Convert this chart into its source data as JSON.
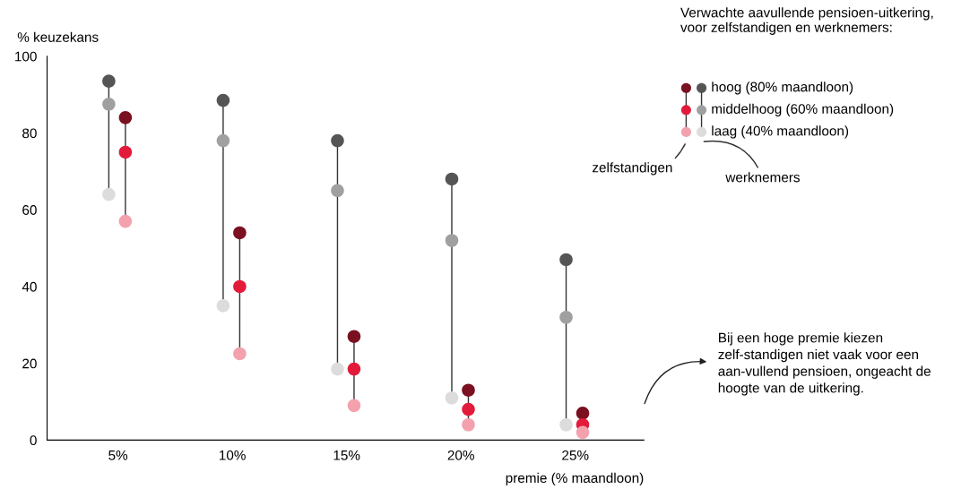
{
  "chart_data": {
    "type": "scatter",
    "ylabel": "% keuzekans",
    "xlabel": "premie (% maandloon)",
    "legend_title": "Verwachte aavullende pensioen-uitkering, voor zelfstandigen en werknemers:",
    "categories": [
      "5%",
      "10%",
      "15%",
      "20%",
      "25%"
    ],
    "ylim": [
      0,
      100
    ],
    "yticks": [
      0,
      20,
      40,
      60,
      80,
      100
    ],
    "grid": false,
    "marker": "circle",
    "legend": "top right",
    "series": [
      {
        "name": "hoog (80% maandloon)",
        "color": "#7a1020",
        "values": [
          84,
          54,
          27,
          13,
          7
        ]
      },
      {
        "name": "middelhoog (60% maandloon)",
        "color": "#e31b3b",
        "values": [
          75,
          40,
          18.5,
          8,
          4
        ]
      },
      {
        "name": "laag (40% maandloon)",
        "color": "#f4a1ae",
        "values": [
          57,
          22.5,
          9,
          4,
          2
        ]
      },
      {
        "color": "#555555",
        "values": [
          93.5,
          88.5,
          78,
          68,
          47
        ]
      },
      {
        "color": "#a0a0a0",
        "values": [
          87.5,
          78,
          65,
          52,
          32
        ]
      },
      {
        "color": "#dcdcdc",
        "values": [
          64,
          35,
          18.5,
          11,
          4
        ]
      }
    ],
    "annotations": [
      "zelfstandigen",
      "werknemers",
      "Bij een hoge premie kiezen zelf-standigen niet vaak voor een aan-vullend pensioen, ongeacht de hoogte van de uitkering."
    ]
  }
}
